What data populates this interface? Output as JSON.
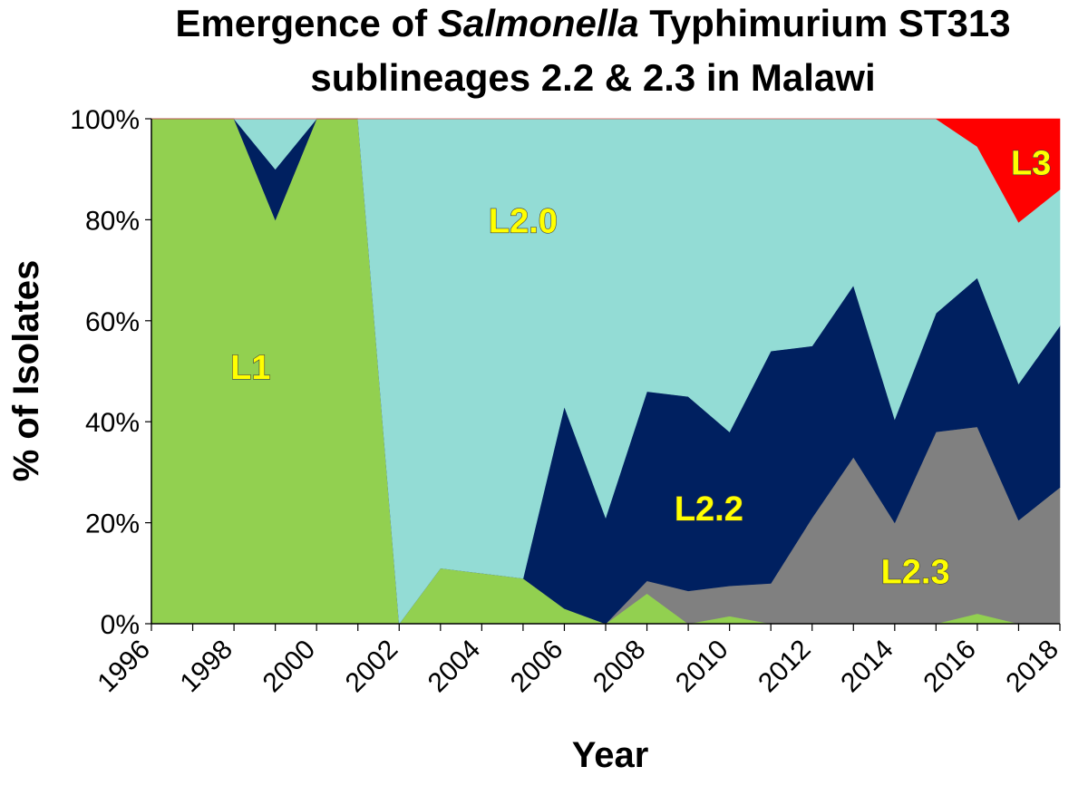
{
  "chart_data": {
    "type": "area",
    "stacked": true,
    "percent": true,
    "title": {
      "line1_prefix": "Emergence of ",
      "line1_italic": "Salmonella",
      "line1_suffix": " Typhimurium ST313",
      "line2": "sublineages 2.2 & 2.3 in Malawi"
    },
    "xlabel": "Year",
    "ylabel": "% of Isolates",
    "ylim": [
      0,
      100
    ],
    "y_ticks": [
      0,
      20,
      40,
      60,
      80,
      100
    ],
    "y_tick_labels": [
      "0%",
      "20%",
      "40%",
      "60%",
      "80%",
      "100%"
    ],
    "x_ticks": [
      1996,
      1998,
      2000,
      2002,
      2004,
      2006,
      2008,
      2010,
      2012,
      2014,
      2016,
      2018
    ],
    "x_tick_labels": [
      "1996",
      "1998",
      "2000",
      "2002",
      "2004",
      "2006",
      "2008",
      "2010",
      "2012",
      "2014",
      "2016",
      "2018"
    ],
    "x": [
      1996,
      1997,
      1998,
      1999,
      2000,
      2001,
      2002,
      2003,
      2004,
      2005,
      2006,
      2007,
      2008,
      2009,
      2010,
      2011,
      2012,
      2013,
      2014,
      2015,
      2016,
      2017,
      2018
    ],
    "series": [
      {
        "name": "L1",
        "label": "L1",
        "color": "#92d050",
        "label_at": [
          1998.4,
          51
        ],
        "values": [
          100,
          100,
          100,
          80,
          100,
          100,
          0,
          11,
          10,
          9,
          3,
          0,
          6,
          0,
          1.5,
          0,
          0,
          0,
          0,
          0,
          2,
          0,
          0
        ]
      },
      {
        "name": "L2.3",
        "label": "L2.3",
        "color": "#808080",
        "label_at": [
          2014.5,
          10.5
        ],
        "values": [
          0,
          0,
          0,
          0,
          0,
          0,
          0,
          0,
          0,
          0,
          0,
          0,
          2.5,
          6.5,
          6,
          8,
          21,
          33,
          20,
          38,
          37,
          20.5,
          27
        ]
      },
      {
        "name": "L2.2",
        "label": "L2.2",
        "color": "#002060",
        "label_at": [
          2009.5,
          23
        ],
        "values": [
          0,
          0,
          0,
          10,
          0,
          0,
          0,
          0,
          0,
          0,
          40,
          21,
          37.5,
          38.5,
          30.5,
          46,
          34,
          34,
          20.5,
          23.5,
          29.5,
          27,
          32
        ]
      },
      {
        "name": "L2.0",
        "label": "L2.0",
        "color": "#93dcd5",
        "label_at": [
          2005,
          80
        ],
        "values": [
          0,
          0,
          0,
          10,
          0,
          0,
          100,
          89,
          90,
          91,
          57,
          79,
          54,
          55,
          62,
          46,
          45,
          33,
          59.5,
          38.5,
          26,
          32,
          27
        ]
      },
      {
        "name": "L3",
        "label": "L3",
        "color": "#ff0000",
        "label_at": [
          2017.3,
          91.5
        ],
        "values": [
          0,
          0,
          0,
          0,
          0,
          0,
          0,
          0,
          0,
          0,
          0,
          0,
          0,
          0,
          0,
          0,
          0,
          0,
          0,
          0,
          5.5,
          20.5,
          14
        ]
      }
    ]
  }
}
